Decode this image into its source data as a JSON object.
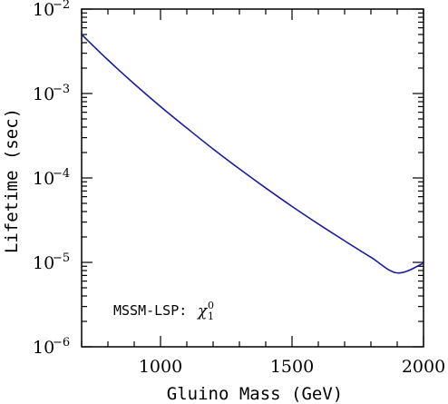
{
  "chart_data": {
    "type": "line",
    "xlabel": "Gluino Mass (GeV)",
    "ylabel": "Lifetime (sec)",
    "xlim": [
      700,
      2000
    ],
    "ylim": [
      1e-06,
      0.01
    ],
    "yscale": "log",
    "grid": false,
    "legend": "none",
    "x_ticks": [
      {
        "value": 1000,
        "label": "1000"
      },
      {
        "value": 1500,
        "label": "1500"
      },
      {
        "value": 2000,
        "label": "2000"
      }
    ],
    "y_ticks": [
      {
        "value": 1e-06,
        "base": "10",
        "exp": "−6"
      },
      {
        "value": 1e-05,
        "base": "10",
        "exp": "−5"
      },
      {
        "value": 0.0001,
        "base": "10",
        "exp": "−4"
      },
      {
        "value": 0.001,
        "base": "10",
        "exp": "−3"
      },
      {
        "value": 0.01,
        "base": "10",
        "exp": "−2"
      }
    ],
    "annotation": {
      "text": "MSSM-LSP:",
      "symbol": "χ",
      "superscript": "0",
      "subscript": "1"
    },
    "line_color": "#1c1c9c",
    "series": [
      {
        "x": [
          700,
          800,
          900,
          1000,
          1100,
          1200,
          1300,
          1400,
          1500,
          1600,
          1700,
          1800,
          1900,
          2000
        ],
        "y": [
          0.005,
          0.0025,
          0.0013,
          0.0007,
          0.00039,
          0.00022,
          0.000128,
          7.6e-05,
          4.6e-05,
          2.85e-05,
          1.8e-05,
          1.15e-05,
          7.5e-06,
          9.8e-06
        ]
      }
    ]
  }
}
